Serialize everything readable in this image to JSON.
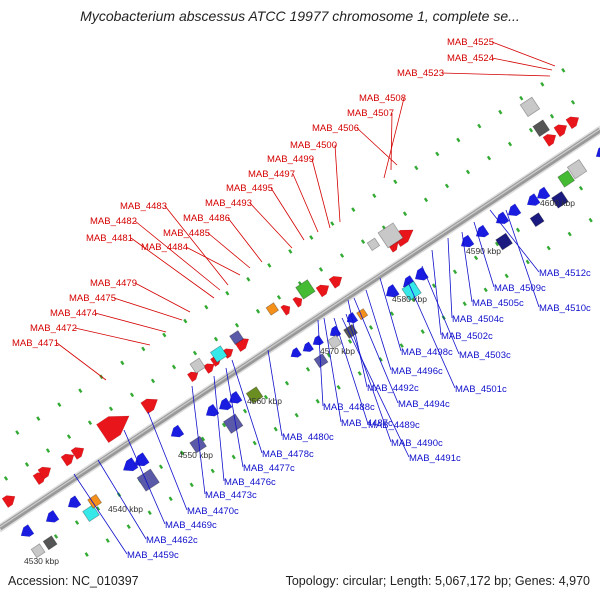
{
  "header": {
    "title": "Mycobacterium abscessus ATCC 19977 chromosome 1, complete se..."
  },
  "footer": {
    "accession": "Accession: NC_010397",
    "summary": "Topology: circular; Length: 5,067,172 bp; Genes: 4,970"
  },
  "colors": {
    "forward_gene": "#e8151b",
    "reverse_gene": "#1a1de0",
    "forward_label": "#d40000",
    "reverse_label": "#1010cc",
    "backbone": "#999999",
    "tick": "#33aa33",
    "cds_grey": "#c8c8c8",
    "cds_dark": "#555555",
    "rna_cyan": "#37e8e8",
    "rna_green": "#44bb33",
    "rna_orange": "#f5901a",
    "domain_purple": "#5a5aa8",
    "domain_olive": "#6b8e23"
  },
  "kbp_labels": [
    "4530 kbp",
    "4540 kbp",
    "4550 kbp",
    "4560 kbp",
    "4570 kbp",
    "4580 kbp",
    "4590 kbp",
    "4600 kbp"
  ],
  "forward_labels": [
    "MAB_4525",
    "MAB_4524",
    "MAB_4523",
    "MAB_4508",
    "MAB_4507",
    "MAB_4506",
    "MAB_4500",
    "MAB_4499",
    "MAB_4497",
    "MAB_4495",
    "MAB_4493",
    "MAB_4486",
    "MAB_4485",
    "MAB_4484",
    "MAB_4483",
    "MAB_4482",
    "MAB_4481",
    "MAB_4479",
    "MAB_4475",
    "MAB_4474",
    "MAB_4472",
    "MAB_4471"
  ],
  "reverse_labels": [
    "MAB_4512c",
    "MAB_4509c",
    "MAB_4510c",
    "MAB_4505c",
    "MAB_4504c",
    "MAB_4502c",
    "MAB_4503c",
    "MAB_4498c",
    "MAB_4496c",
    "MAB_4501c",
    "MAB_4492c",
    "MAB_4494c",
    "MAB_4488c",
    "MAB_4487c",
    "MAB_4489c",
    "MAB_4480c",
    "MAB_4490c",
    "MAB_4491c",
    "MAB_4478c",
    "MAB_4477c",
    "MAB_4476c",
    "MAB_4473c",
    "MAB_4470c",
    "MAB_4469c",
    "MAB_4462c",
    "MAB_4459c"
  ]
}
